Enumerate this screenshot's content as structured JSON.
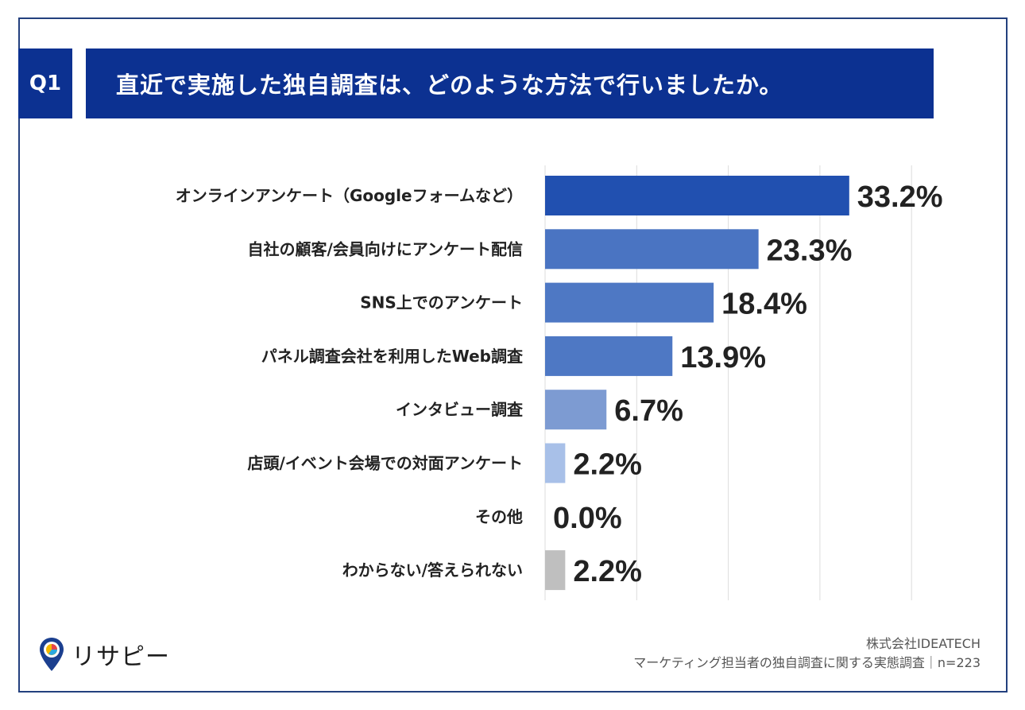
{
  "header": {
    "q_label": "Q1",
    "title": "直近で実施した独自調査は、どのような方法で行いましたか。"
  },
  "chart_data": {
    "type": "bar",
    "orientation": "horizontal",
    "xlim": [
      0,
      40
    ],
    "grid": true,
    "value_suffix": "%",
    "categories": [
      "オンラインアンケート（Googleフォームなど）",
      "自社の顧客/会員向けにアンケート配信",
      "SNS上でのアンケート",
      "パネル調査会社を利用したWeb調査",
      "インタビュー調査",
      "店頭/イベント会場での対面アンケート",
      "その他",
      "わからない/答えられない"
    ],
    "values": [
      33.2,
      23.3,
      18.4,
      13.9,
      6.7,
      2.2,
      0.0,
      2.2
    ],
    "value_labels": [
      "33.2%",
      "23.3%",
      "18.4%",
      "13.9%",
      "6.7%",
      "2.2%",
      "0.0%",
      "2.2%"
    ],
    "colors": [
      "#2150b0",
      "#4a74c2",
      "#4e78c4",
      "#4e78c4",
      "#7d9bd2",
      "#a8c0e8",
      "#a8c0e8",
      "#bfbfbf"
    ]
  },
  "footer": {
    "logo_text": "リサピー",
    "company": "株式会社IDEATECH",
    "survey": "マーケティング担当者の独自調査に関する実態調査｜n=223"
  }
}
